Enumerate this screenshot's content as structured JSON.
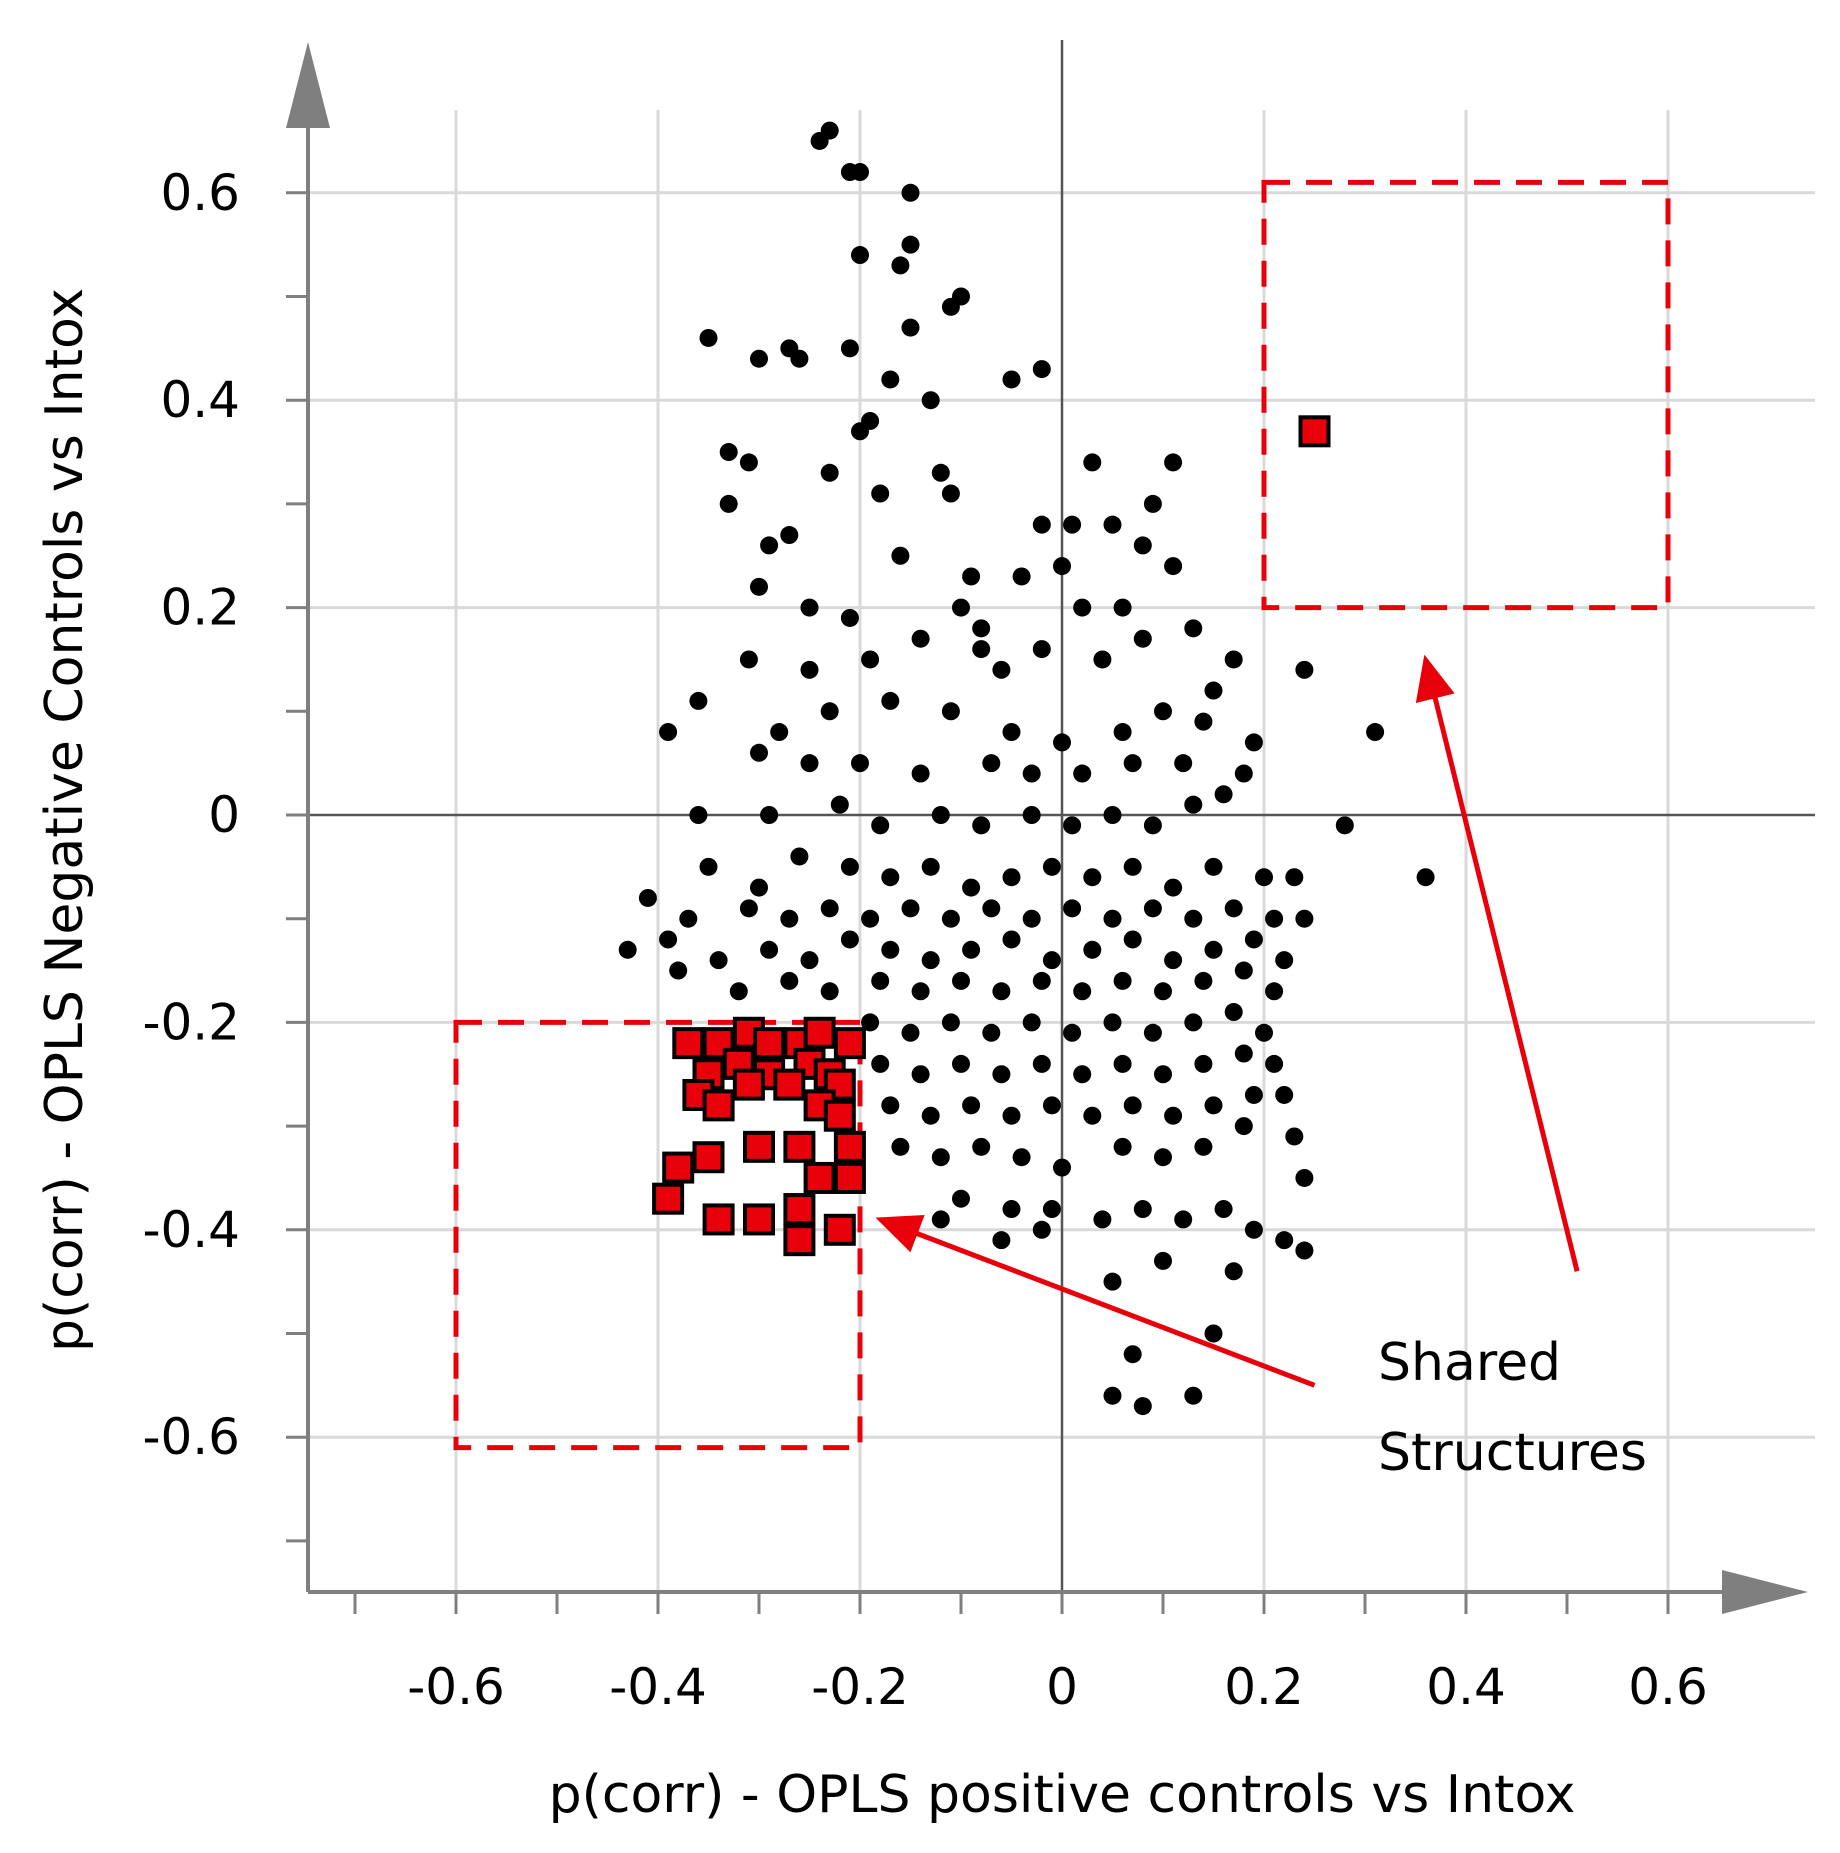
{
  "chart_data": {
    "type": "scatter",
    "xlabel": "p(corr) - OPLS positive controls vs Intox",
    "ylabel": "p(corr) - OPLS Negative Controls vs Intox",
    "xlim": [
      -0.72,
      0.74
    ],
    "ylim": [
      -0.75,
      0.73
    ],
    "xticks": [
      -0.6,
      -0.4,
      -0.2,
      0,
      0.2,
      0.4,
      0.6
    ],
    "yticks": [
      -0.6,
      -0.4,
      -0.2,
      0,
      0.2,
      0.4,
      0.6
    ],
    "xtick_labels": [
      "-0.6",
      "-0.4",
      "-0.2",
      "0",
      "0.2",
      "0.4",
      "0.6"
    ],
    "ytick_labels": [
      "-0.6",
      "-0.4",
      "-0.2",
      "0",
      "0.2",
      "0.4",
      "0.6"
    ],
    "grid": true,
    "colors": {
      "points": "#000000",
      "highlight": "#e8000b",
      "annotation": "#e8000b",
      "grid": "#d9d9d9",
      "axis": "#7f7f7f"
    },
    "series": [
      {
        "marker": "circle",
        "color": "#000000",
        "points": [
          [
            -0.24,
            0.65
          ],
          [
            -0.23,
            0.66
          ],
          [
            -0.21,
            0.62
          ],
          [
            -0.2,
            0.62
          ],
          [
            -0.2,
            0.54
          ],
          [
            -0.15,
            0.6
          ],
          [
            -0.16,
            0.53
          ],
          [
            -0.15,
            0.55
          ],
          [
            -0.1,
            0.5
          ],
          [
            -0.11,
            0.49
          ],
          [
            -0.15,
            0.47
          ],
          [
            -0.35,
            0.46
          ],
          [
            -0.3,
            0.44
          ],
          [
            -0.27,
            0.45
          ],
          [
            -0.26,
            0.44
          ],
          [
            -0.21,
            0.45
          ],
          [
            -0.17,
            0.42
          ],
          [
            -0.05,
            0.42
          ],
          [
            -0.02,
            0.43
          ],
          [
            -0.13,
            0.4
          ],
          [
            -0.19,
            0.38
          ],
          [
            -0.2,
            0.37
          ],
          [
            -0.33,
            0.35
          ],
          [
            -0.31,
            0.34
          ],
          [
            -0.23,
            0.33
          ],
          [
            -0.12,
            0.33
          ],
          [
            -0.11,
            0.31
          ],
          [
            -0.18,
            0.31
          ],
          [
            -0.33,
            0.3
          ],
          [
            -0.02,
            0.28
          ],
          [
            0.01,
            0.28
          ],
          [
            0.03,
            0.34
          ],
          [
            0.11,
            0.34
          ],
          [
            0.05,
            0.28
          ],
          [
            0.09,
            0.3
          ],
          [
            0.08,
            0.26
          ],
          [
            0.11,
            0.24
          ],
          [
            -0.27,
            0.27
          ],
          [
            -0.29,
            0.26
          ],
          [
            -0.16,
            0.25
          ],
          [
            -0.09,
            0.23
          ],
          [
            -0.04,
            0.23
          ],
          [
            0.0,
            0.24
          ],
          [
            -0.3,
            0.22
          ],
          [
            -0.25,
            0.2
          ],
          [
            -0.21,
            0.19
          ],
          [
            -0.1,
            0.2
          ],
          [
            -0.08,
            0.18
          ],
          [
            0.02,
            0.2
          ],
          [
            0.06,
            0.2
          ],
          [
            0.13,
            0.18
          ],
          [
            -0.31,
            0.15
          ],
          [
            -0.25,
            0.14
          ],
          [
            -0.19,
            0.15
          ],
          [
            -0.14,
            0.17
          ],
          [
            -0.08,
            0.16
          ],
          [
            -0.06,
            0.14
          ],
          [
            -0.02,
            0.16
          ],
          [
            0.04,
            0.15
          ],
          [
            0.08,
            0.17
          ],
          [
            0.17,
            0.15
          ],
          [
            0.15,
            0.12
          ],
          [
            -0.36,
            0.11
          ],
          [
            -0.28,
            0.08
          ],
          [
            -0.23,
            0.1
          ],
          [
            -0.17,
            0.11
          ],
          [
            -0.11,
            0.1
          ],
          [
            -0.05,
            0.08
          ],
          [
            0.0,
            0.07
          ],
          [
            0.06,
            0.08
          ],
          [
            0.1,
            0.1
          ],
          [
            0.14,
            0.09
          ],
          [
            0.19,
            0.07
          ],
          [
            0.24,
            0.14
          ],
          [
            0.31,
            0.08
          ],
          [
            -0.39,
            0.08
          ],
          [
            -0.3,
            0.06
          ],
          [
            -0.25,
            0.05
          ],
          [
            -0.2,
            0.05
          ],
          [
            -0.14,
            0.04
          ],
          [
            -0.07,
            0.05
          ],
          [
            -0.03,
            0.04
          ],
          [
            0.02,
            0.04
          ],
          [
            0.07,
            0.05
          ],
          [
            0.12,
            0.05
          ],
          [
            0.18,
            0.04
          ],
          [
            -0.36,
            0.0
          ],
          [
            -0.29,
            0.0
          ],
          [
            -0.22,
            0.01
          ],
          [
            -0.18,
            -0.01
          ],
          [
            -0.12,
            0.0
          ],
          [
            -0.08,
            -0.01
          ],
          [
            -0.03,
            0.0
          ],
          [
            0.01,
            -0.01
          ],
          [
            0.05,
            0.0
          ],
          [
            0.09,
            -0.01
          ],
          [
            0.13,
            0.01
          ],
          [
            0.16,
            0.02
          ],
          [
            0.28,
            -0.01
          ],
          [
            0.36,
            -0.06
          ],
          [
            -0.35,
            -0.05
          ],
          [
            -0.3,
            -0.07
          ],
          [
            -0.26,
            -0.04
          ],
          [
            -0.21,
            -0.05
          ],
          [
            -0.17,
            -0.06
          ],
          [
            -0.13,
            -0.05
          ],
          [
            -0.09,
            -0.07
          ],
          [
            -0.05,
            -0.06
          ],
          [
            -0.01,
            -0.05
          ],
          [
            0.03,
            -0.06
          ],
          [
            0.07,
            -0.05
          ],
          [
            0.11,
            -0.07
          ],
          [
            0.15,
            -0.05
          ],
          [
            0.2,
            -0.06
          ],
          [
            0.23,
            -0.06
          ],
          [
            -0.41,
            -0.08
          ],
          [
            -0.37,
            -0.1
          ],
          [
            -0.31,
            -0.09
          ],
          [
            -0.27,
            -0.1
          ],
          [
            -0.23,
            -0.09
          ],
          [
            -0.19,
            -0.1
          ],
          [
            -0.15,
            -0.09
          ],
          [
            -0.11,
            -0.1
          ],
          [
            -0.07,
            -0.09
          ],
          [
            -0.03,
            -0.1
          ],
          [
            0.01,
            -0.09
          ],
          [
            0.05,
            -0.1
          ],
          [
            0.09,
            -0.09
          ],
          [
            0.13,
            -0.1
          ],
          [
            0.17,
            -0.09
          ],
          [
            0.21,
            -0.1
          ],
          [
            0.24,
            -0.1
          ],
          [
            -0.43,
            -0.13
          ],
          [
            -0.39,
            -0.12
          ],
          [
            -0.34,
            -0.14
          ],
          [
            -0.29,
            -0.13
          ],
          [
            -0.25,
            -0.14
          ],
          [
            -0.21,
            -0.12
          ],
          [
            -0.17,
            -0.13
          ],
          [
            -0.13,
            -0.14
          ],
          [
            -0.09,
            -0.13
          ],
          [
            -0.05,
            -0.12
          ],
          [
            -0.01,
            -0.14
          ],
          [
            0.03,
            -0.13
          ],
          [
            0.07,
            -0.12
          ],
          [
            0.11,
            -0.14
          ],
          [
            0.15,
            -0.13
          ],
          [
            0.19,
            -0.12
          ],
          [
            0.22,
            -0.14
          ],
          [
            -0.38,
            -0.15
          ],
          [
            -0.32,
            -0.17
          ],
          [
            -0.27,
            -0.16
          ],
          [
            -0.23,
            -0.17
          ],
          [
            -0.18,
            -0.16
          ],
          [
            -0.14,
            -0.17
          ],
          [
            -0.1,
            -0.16
          ],
          [
            -0.06,
            -0.17
          ],
          [
            -0.02,
            -0.16
          ],
          [
            0.02,
            -0.17
          ],
          [
            0.06,
            -0.16
          ],
          [
            0.1,
            -0.17
          ],
          [
            0.14,
            -0.16
          ],
          [
            0.18,
            -0.15
          ],
          [
            0.21,
            -0.17
          ],
          [
            -0.19,
            -0.2
          ],
          [
            -0.15,
            -0.21
          ],
          [
            -0.11,
            -0.2
          ],
          [
            -0.07,
            -0.21
          ],
          [
            -0.03,
            -0.2
          ],
          [
            0.01,
            -0.21
          ],
          [
            0.05,
            -0.2
          ],
          [
            0.09,
            -0.21
          ],
          [
            0.13,
            -0.2
          ],
          [
            0.17,
            -0.19
          ],
          [
            0.2,
            -0.21
          ],
          [
            -0.18,
            -0.24
          ],
          [
            -0.14,
            -0.25
          ],
          [
            -0.1,
            -0.24
          ],
          [
            -0.06,
            -0.25
          ],
          [
            -0.02,
            -0.24
          ],
          [
            0.02,
            -0.25
          ],
          [
            0.06,
            -0.24
          ],
          [
            0.1,
            -0.25
          ],
          [
            0.14,
            -0.24
          ],
          [
            0.18,
            -0.23
          ],
          [
            0.21,
            -0.24
          ],
          [
            -0.17,
            -0.28
          ],
          [
            -0.13,
            -0.29
          ],
          [
            -0.09,
            -0.28
          ],
          [
            -0.05,
            -0.29
          ],
          [
            -0.01,
            -0.28
          ],
          [
            0.03,
            -0.29
          ],
          [
            0.07,
            -0.28
          ],
          [
            0.11,
            -0.29
          ],
          [
            0.15,
            -0.28
          ],
          [
            0.19,
            -0.27
          ],
          [
            0.22,
            -0.27
          ],
          [
            -0.16,
            -0.32
          ],
          [
            -0.12,
            -0.33
          ],
          [
            -0.08,
            -0.32
          ],
          [
            -0.04,
            -0.33
          ],
          [
            0.0,
            -0.34
          ],
          [
            0.06,
            -0.32
          ],
          [
            0.1,
            -0.33
          ],
          [
            0.14,
            -0.32
          ],
          [
            0.18,
            -0.3
          ],
          [
            0.23,
            -0.31
          ],
          [
            -0.1,
            -0.37
          ],
          [
            -0.05,
            -0.38
          ],
          [
            -0.02,
            -0.4
          ],
          [
            0.04,
            -0.39
          ],
          [
            0.08,
            -0.38
          ],
          [
            0.12,
            -0.39
          ],
          [
            0.16,
            -0.38
          ],
          [
            0.19,
            -0.4
          ],
          [
            0.22,
            -0.41
          ],
          [
            0.24,
            -0.42
          ],
          [
            0.05,
            -0.45
          ],
          [
            0.1,
            -0.43
          ],
          [
            0.15,
            -0.5
          ],
          [
            0.07,
            -0.52
          ],
          [
            0.05,
            -0.56
          ],
          [
            0.08,
            -0.57
          ],
          [
            0.13,
            -0.56
          ],
          [
            0.17,
            -0.44
          ],
          [
            0.24,
            -0.35
          ],
          [
            -0.12,
            -0.39
          ],
          [
            -0.06,
            -0.41
          ],
          [
            -0.01,
            -0.38
          ]
        ]
      },
      {
        "marker": "square",
        "color": "#e8000b",
        "points": [
          [
            0.25,
            0.37
          ],
          [
            -0.37,
            -0.22
          ],
          [
            -0.34,
            -0.22
          ],
          [
            -0.31,
            -0.21
          ],
          [
            -0.29,
            -0.22
          ],
          [
            -0.26,
            -0.22
          ],
          [
            -0.24,
            -0.21
          ],
          [
            -0.21,
            -0.22
          ],
          [
            -0.35,
            -0.25
          ],
          [
            -0.32,
            -0.24
          ],
          [
            -0.29,
            -0.25
          ],
          [
            -0.25,
            -0.24
          ],
          [
            -0.23,
            -0.25
          ],
          [
            -0.36,
            -0.27
          ],
          [
            -0.31,
            -0.26
          ],
          [
            -0.27,
            -0.26
          ],
          [
            -0.22,
            -0.26
          ],
          [
            -0.34,
            -0.28
          ],
          [
            -0.24,
            -0.28
          ],
          [
            -0.22,
            -0.29
          ],
          [
            -0.26,
            -0.32
          ],
          [
            -0.21,
            -0.32
          ],
          [
            -0.3,
            -0.32
          ],
          [
            -0.35,
            -0.33
          ],
          [
            -0.38,
            -0.34
          ],
          [
            -0.24,
            -0.35
          ],
          [
            -0.21,
            -0.35
          ],
          [
            -0.39,
            -0.37
          ],
          [
            -0.26,
            -0.38
          ],
          [
            -0.34,
            -0.39
          ],
          [
            -0.3,
            -0.39
          ],
          [
            -0.22,
            -0.4
          ],
          [
            -0.26,
            -0.41
          ]
        ]
      }
    ],
    "highlight_boxes": [
      {
        "x": [
          0.2,
          0.6
        ],
        "y": [
          0.2,
          0.61
        ]
      },
      {
        "x": [
          -0.6,
          -0.2
        ],
        "y": [
          -0.61,
          -0.2
        ]
      }
    ],
    "annotation": {
      "lines": [
        "Shared",
        "Structures"
      ],
      "arrows": [
        {
          "from": [
            0.51,
            -0.44
          ],
          "to": [
            0.36,
            0.15
          ]
        },
        {
          "from": [
            0.25,
            -0.55
          ],
          "to": [
            -0.18,
            -0.39
          ]
        }
      ]
    }
  }
}
